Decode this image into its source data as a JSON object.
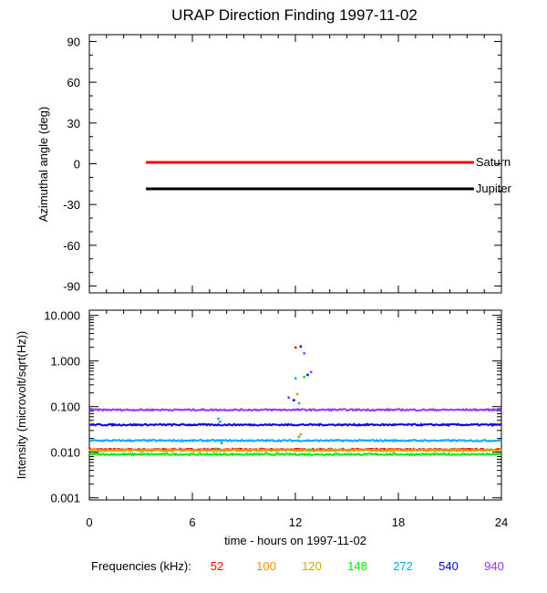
{
  "title": "URAP Direction Finding  1997-11-02",
  "colors": {
    "axis": "#000000",
    "saturn": "#ff0000",
    "jupiter": "#000000",
    "f52": "#ff0000",
    "f100": "#ff8c00",
    "f120": "#ccaa00",
    "f148": "#00ee00",
    "f272": "#00aaff",
    "f540": "#0000ee",
    "f940": "#9933ff"
  },
  "chart_data": [
    {
      "type": "line",
      "panel": "top",
      "ylabel": "Azimuthal angle (deg)",
      "xlim": [
        0,
        24
      ],
      "ylim": [
        -95,
        95
      ],
      "yticks": [
        90,
        60,
        30,
        0,
        -30,
        -60,
        -90
      ],
      "ytick_labels": [
        "90",
        "60",
        "30",
        "0",
        "-30",
        "-60",
        "-90"
      ],
      "series": [
        {
          "name": "Saturn",
          "label": "Saturn",
          "color_key": "saturn",
          "x": [
            3.3,
            22.4
          ],
          "y": [
            1,
            1
          ]
        },
        {
          "name": "Jupiter",
          "label": "Jupiter",
          "color_key": "jupiter",
          "x": [
            3.3,
            22.4
          ],
          "y": [
            -18.5,
            -18.5
          ]
        }
      ]
    },
    {
      "type": "scatter",
      "panel": "bottom",
      "ylabel": "Intensity (microvolt/sqrt(Hz))",
      "xlabel": "time - hours on 1997-11-02",
      "xlim": [
        0,
        24
      ],
      "xticks": [
        0,
        6,
        12,
        18,
        24
      ],
      "xtick_labels": [
        "0",
        "6",
        "12",
        "18",
        "24"
      ],
      "yscale": "log",
      "ylim": [
        0.0009,
        13
      ],
      "yticks": [
        10,
        1,
        0.1,
        0.01,
        0.001
      ],
      "ytick_labels": [
        "10.000",
        "1.000",
        "0.100",
        "0.010",
        "0.001"
      ],
      "legend_title": "Frequencies (kHz):",
      "series": [
        {
          "name": "52",
          "label": "52",
          "color_key": "f52",
          "baseline": 0.0115
        },
        {
          "name": "100",
          "label": "100",
          "color_key": "f100",
          "baseline": 0.0112
        },
        {
          "name": "120",
          "label": "120",
          "color_key": "f120",
          "baseline": 0.0109
        },
        {
          "name": "148",
          "label": "148",
          "color_key": "f148",
          "baseline": 0.009
        },
        {
          "name": "272",
          "label": "272",
          "color_key": "f272",
          "baseline": 0.018
        },
        {
          "name": "540",
          "label": "540",
          "color_key": "f540",
          "baseline": 0.04
        },
        {
          "name": "940",
          "label": "940",
          "color_key": "f940",
          "baseline": 0.085
        }
      ],
      "burst_points": [
        {
          "color_key": "f52",
          "x": 12.0,
          "y": 2.0
        },
        {
          "color_key": "f540",
          "x": 12.3,
          "y": 2.1
        },
        {
          "color_key": "f940",
          "x": 12.5,
          "y": 1.5
        },
        {
          "color_key": "f272",
          "x": 12.0,
          "y": 0.42
        },
        {
          "color_key": "f148",
          "x": 12.5,
          "y": 0.45
        },
        {
          "color_key": "f540",
          "x": 12.7,
          "y": 0.5
        },
        {
          "color_key": "f940",
          "x": 12.9,
          "y": 0.58
        },
        {
          "color_key": "f120",
          "x": 12.1,
          "y": 0.19
        },
        {
          "color_key": "f940",
          "x": 11.6,
          "y": 0.16
        },
        {
          "color_key": "f540",
          "x": 11.9,
          "y": 0.14
        },
        {
          "color_key": "f272",
          "x": 12.2,
          "y": 0.12
        },
        {
          "color_key": "f100",
          "x": 12.3,
          "y": 0.025
        },
        {
          "color_key": "f148",
          "x": 12.2,
          "y": 0.022
        },
        {
          "color_key": "f272",
          "x": 7.5,
          "y": 0.055
        },
        {
          "color_key": "f272",
          "x": 7.6,
          "y": 0.047
        },
        {
          "color_key": "f148",
          "x": 7.4,
          "y": 0.012
        },
        {
          "color_key": "f272",
          "x": 7.7,
          "y": 0.016
        },
        {
          "color_key": "f148",
          "x": 12.8,
          "y": 0.0115
        }
      ]
    }
  ]
}
